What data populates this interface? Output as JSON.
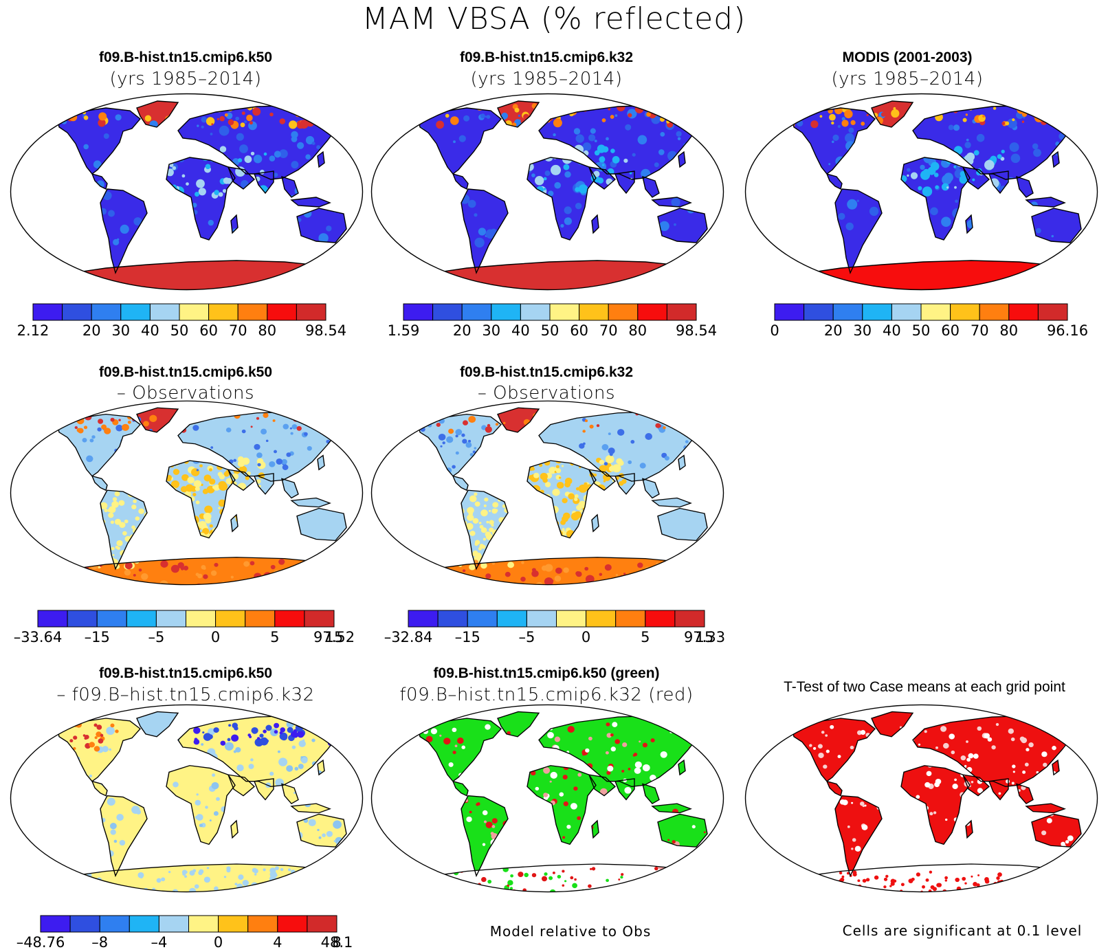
{
  "page_title": "MAM VBSA (% reflected)",
  "panels": [
    {
      "id": "p1",
      "title1": "f09.B-hist.tn15.cmip6.k50",
      "title2": "(yrs 1985–2014)",
      "kind": "abs"
    },
    {
      "id": "p2",
      "title1": "f09.B-hist.tn15.cmip6.k32",
      "title2": "(yrs 1985–2014)",
      "kind": "abs"
    },
    {
      "id": "p3",
      "title1": "MODIS (2001-2003)",
      "title2": "(yrs 1985–2014)",
      "kind": "abs"
    },
    {
      "id": "p4",
      "title1": "f09.B-hist.tn15.cmip6.k50",
      "title2": "– Observations",
      "kind": "diff"
    },
    {
      "id": "p5",
      "title1": "f09.B-hist.tn15.cmip6.k32",
      "title2": "– Observations",
      "kind": "diff"
    },
    {
      "id": "p6",
      "title1": "f09.B-hist.tn15.cmip6.k50",
      "title2": "– f09.B–hist.tn15.cmip6.k32",
      "kind": "diff2"
    },
    {
      "id": "p7",
      "title1": "f09.B-hist.tn15.cmip6.k50 (green)",
      "title2": "f09.B–hist.tn15.cmip6.k32 (red)",
      "kind": "rel"
    },
    {
      "id": "p8",
      "title1": "T-Test of two Case means at each grid point",
      "title2": "",
      "kind": "ttest"
    }
  ],
  "colorbars": [
    {
      "id": "cb1",
      "labels": [
        "2.12",
        "20",
        "30",
        "40",
        "50",
        "60",
        "70",
        "80",
        "98.54"
      ]
    },
    {
      "id": "cb2",
      "labels": [
        "1.59",
        "20",
        "30",
        "40",
        "50",
        "60",
        "70",
        "80",
        "98.54"
      ]
    },
    {
      "id": "cb3",
      "labels": [
        "0",
        "20",
        "30",
        "40",
        "50",
        "60",
        "70",
        "80",
        "96.16"
      ]
    },
    {
      "id": "cb4",
      "labels": [
        "–33.64",
        "–15",
        "–5",
        "0",
        "5",
        "15",
        "97.52"
      ]
    },
    {
      "id": "cb5",
      "labels": [
        "–32.84",
        "–15",
        "–5",
        "0",
        "5",
        "15",
        "97.33"
      ]
    },
    {
      "id": "cb6",
      "labels": [
        "–48.76",
        "–8",
        "–4",
        "0",
        "4",
        "8",
        "48.1"
      ]
    }
  ],
  "colorbar_colors": [
    "#3d1cf0",
    "#2f4fe0",
    "#2f7ff0",
    "#1fb4f5",
    "#a6d4f2",
    "#fff385",
    "#ffc21a",
    "#ff7f10",
    "#f70d0d",
    "#d22a2a"
  ],
  "palette": {
    "land_abs_base": "#3a2be8",
    "land_abs_alt": "#2f60ea",
    "ice": "#d83030",
    "ice_alt": "#f70d0d",
    "ice_mid": "#ff8010",
    "diff_base": "#a6d4f2",
    "diff_pos": "#fff385",
    "diff_hot": "#ffc21a",
    "diff_neg": "#5aa0f0",
    "rel_green": "#19e019",
    "rel_red": "#e01515",
    "ttest_red": "#ee1010"
  },
  "footnotes": {
    "model_relative": "Model relative to Obs",
    "significance": "Cells are significant at 0.1 level"
  }
}
